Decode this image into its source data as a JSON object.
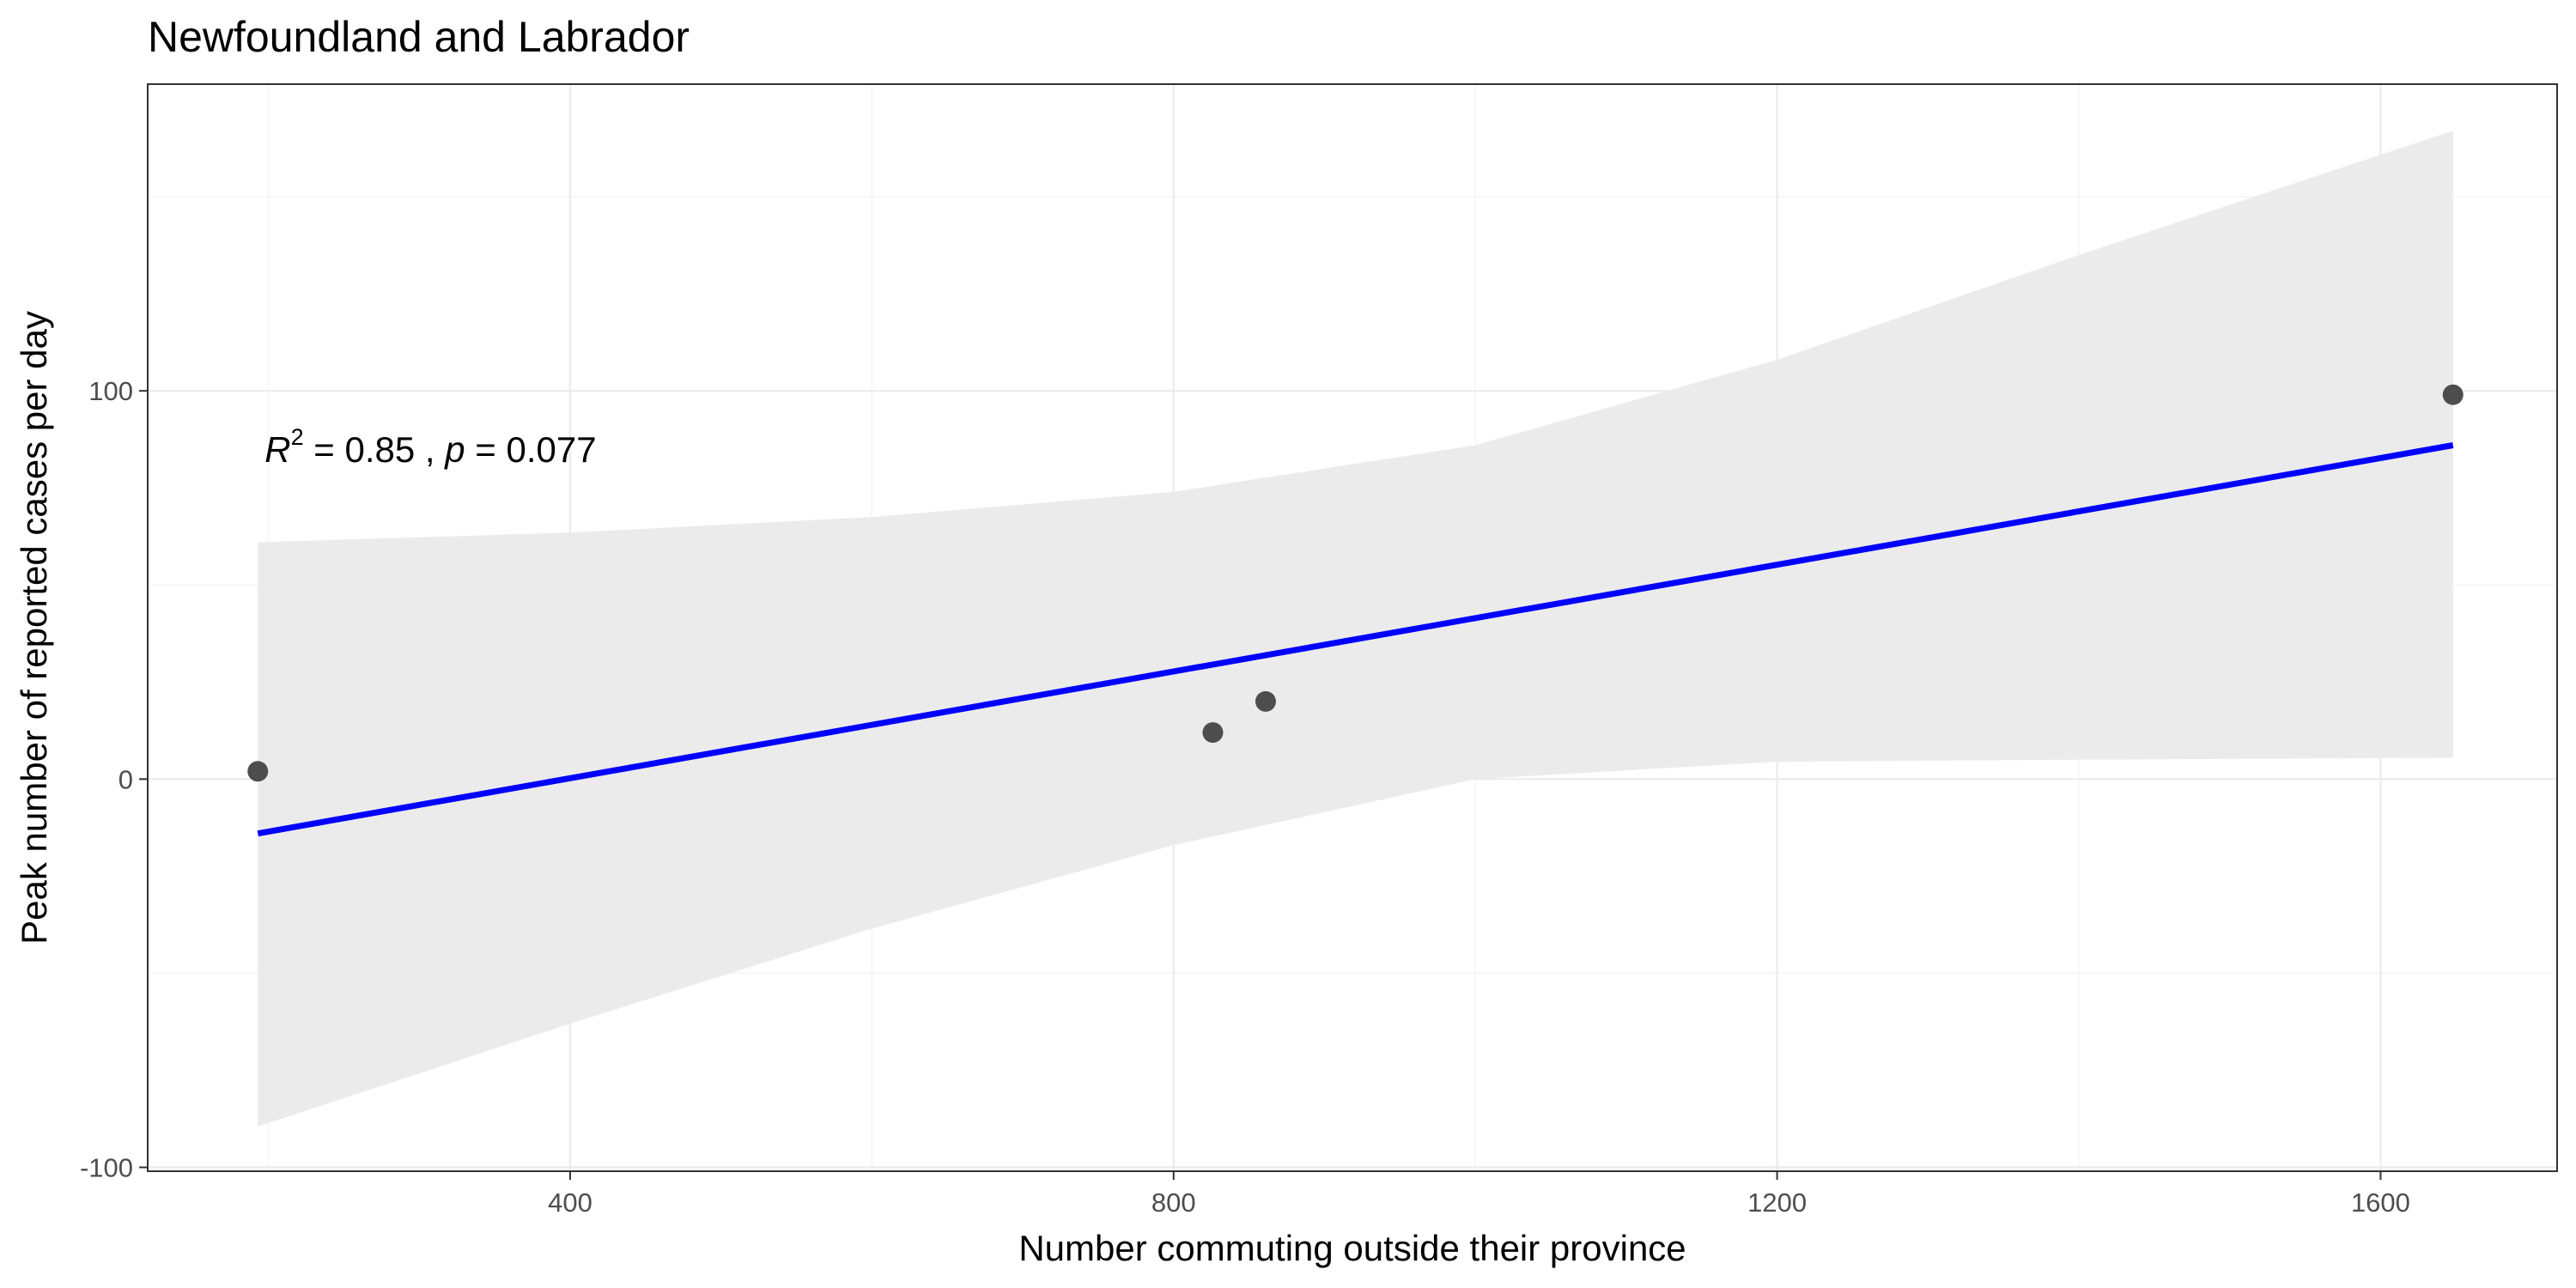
{
  "chart_data": {
    "type": "scatter",
    "title": "Newfoundland and Labrador",
    "xlabel": "Number commuting outside their province",
    "ylabel": "Peak number of reported cases per day",
    "xlim": [
      120,
      1717
    ],
    "ylim": [
      -101,
      179
    ],
    "x_ticks": [
      400,
      800,
      1200,
      1600
    ],
    "x_minor_ticks": [
      200,
      600,
      1000,
      1400
    ],
    "y_ticks": [
      -100,
      0,
      100
    ],
    "y_minor_ticks": [
      -50,
      50,
      150
    ],
    "grid": true,
    "points": [
      {
        "x": 193,
        "y": 2
      },
      {
        "x": 826,
        "y": 12
      },
      {
        "x": 861,
        "y": 20
      },
      {
        "x": 1648,
        "y": 99
      }
    ],
    "fit": {
      "x": [
        193,
        1648
      ],
      "y": [
        -14,
        86
      ],
      "color": "#0000ff",
      "ci_x": [
        193,
        400,
        600,
        800,
        1000,
        1200,
        1400,
        1648
      ],
      "ci_upper": [
        61,
        63.5,
        67.5,
        74,
        86,
        108,
        135,
        167
      ],
      "ci_lower": [
        -89.5,
        -63,
        -38.5,
        -17,
        0,
        4.5,
        5,
        5.5
      ],
      "ci_color": "#ebebeb"
    },
    "annotation": {
      "r_symbol": "R",
      "r_exponent": "2",
      "r_value": " = 0.85 , ",
      "p_symbol": "p",
      "p_value": " = 0.077",
      "x": 193,
      "y": 85
    },
    "point_color": "#4d4d4d"
  }
}
